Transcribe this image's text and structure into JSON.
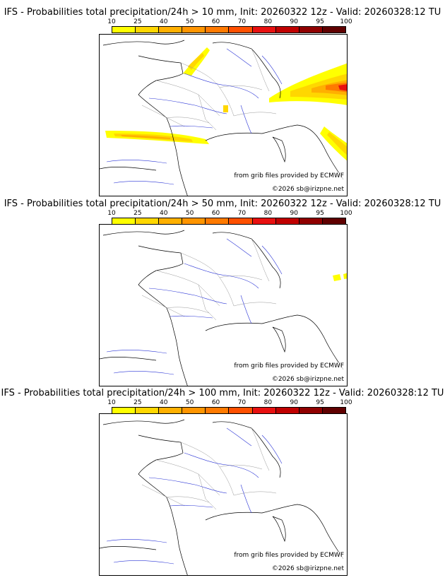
{
  "colorbar": {
    "ticks": [
      "10",
      "25",
      "40",
      "50",
      "60",
      "70",
      "80",
      "90",
      "95",
      "100"
    ],
    "colors": [
      "#ffff00",
      "#ffd700",
      "#ffb000",
      "#ff9500",
      "#ff7a00",
      "#ff5000",
      "#e81010",
      "#c00000",
      "#900000",
      "#600000"
    ]
  },
  "panels": [
    {
      "title": "IFS - Probabilities total precipitation/24h > 10 mm, Init: 20260322 12z - Valid: 20260328:12 TU",
      "source": "from grib files provided by ECMWF",
      "copyright": "©2026 sb@irizpne.net",
      "threshold_mm": 10,
      "precip_areas": [
        {
          "region": "Normandy coast",
          "probability": "10-40"
        },
        {
          "region": "Massif Central (small)",
          "probability": "10-40"
        },
        {
          "region": "Pyrenees",
          "probability": "10-60"
        },
        {
          "region": "Alps / Switzerland",
          "probability": "10-80"
        },
        {
          "region": "Italian Alps (south)",
          "probability": "10-40"
        }
      ]
    },
    {
      "title": "IFS - Probabilities total precipitation/24h > 50 mm, Init: 20260322 12z - Valid: 20260328:12 TU",
      "source": "from grib files provided by ECMWF",
      "copyright": "©2026 sb@irizpne.net",
      "threshold_mm": 50,
      "precip_areas": [
        {
          "region": "Eastern Alps edge",
          "probability": "10-25"
        }
      ]
    },
    {
      "title": "IFS - Probabilities total precipitation/24h > 100 mm, Init: 20260322 12z - Valid: 20260328:12 TU",
      "source": "from grib files provided by ECMWF",
      "copyright": "©2026 sb@irizpne.net",
      "threshold_mm": 100,
      "precip_areas": []
    }
  ]
}
